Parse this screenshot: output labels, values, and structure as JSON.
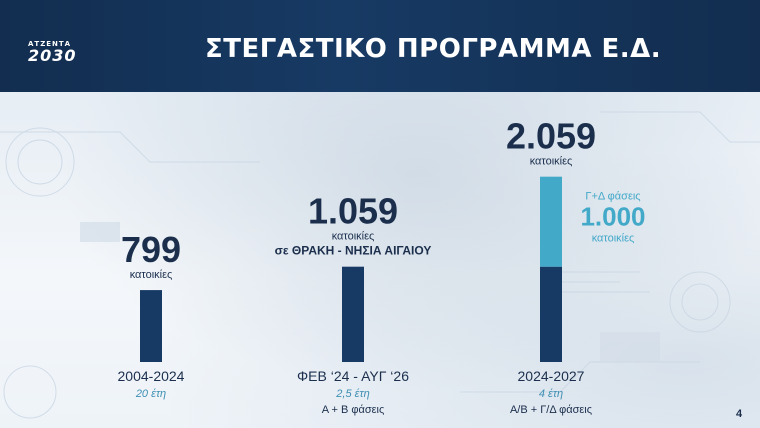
{
  "header": {
    "logo_top": "ΑΤΖΕΝΤΑ",
    "logo_main": "2030",
    "title": "ΣΤΕΓΑΣΤΙΚΟ ΠΡΟΓΡΑΜΜΑ Ε.Δ."
  },
  "page_number": "4",
  "colors": {
    "header": "#173a64",
    "bar_dark": "#173a64",
    "bar_light": "#43a9c9",
    "value_text": "#1b2f4d"
  },
  "chart_data": {
    "type": "bar",
    "categories": [
      "2004-2024",
      "ΦΕΒ ‘24 - ΑΥΓ ‘26",
      "2024-2027"
    ],
    "durations": [
      "20 έτη",
      "2,5 έτη",
      "4 έτη"
    ],
    "phases": [
      "",
      "Α + Β φάσεις",
      "Α/Β + Γ/Δ φάσεις"
    ],
    "values": [
      799,
      1059,
      2059
    ],
    "value_labels": [
      "799",
      "1.059",
      "2.059"
    ],
    "unit_labels": [
      "κατοικίες",
      "κατοικίες",
      "κατοικίες"
    ],
    "extra_labels": [
      "",
      "σε ΘΡΑΚΗ - ΝΗΣΙΑ ΑΙΓΑΙΟΥ",
      ""
    ],
    "stack": {
      "category_index": 2,
      "base_value": 1059,
      "top_value": 1000,
      "top_label_phase": "Γ+Δ φάσεις",
      "top_label_value": "1.000",
      "top_label_unit": "κατοικίες"
    }
  }
}
